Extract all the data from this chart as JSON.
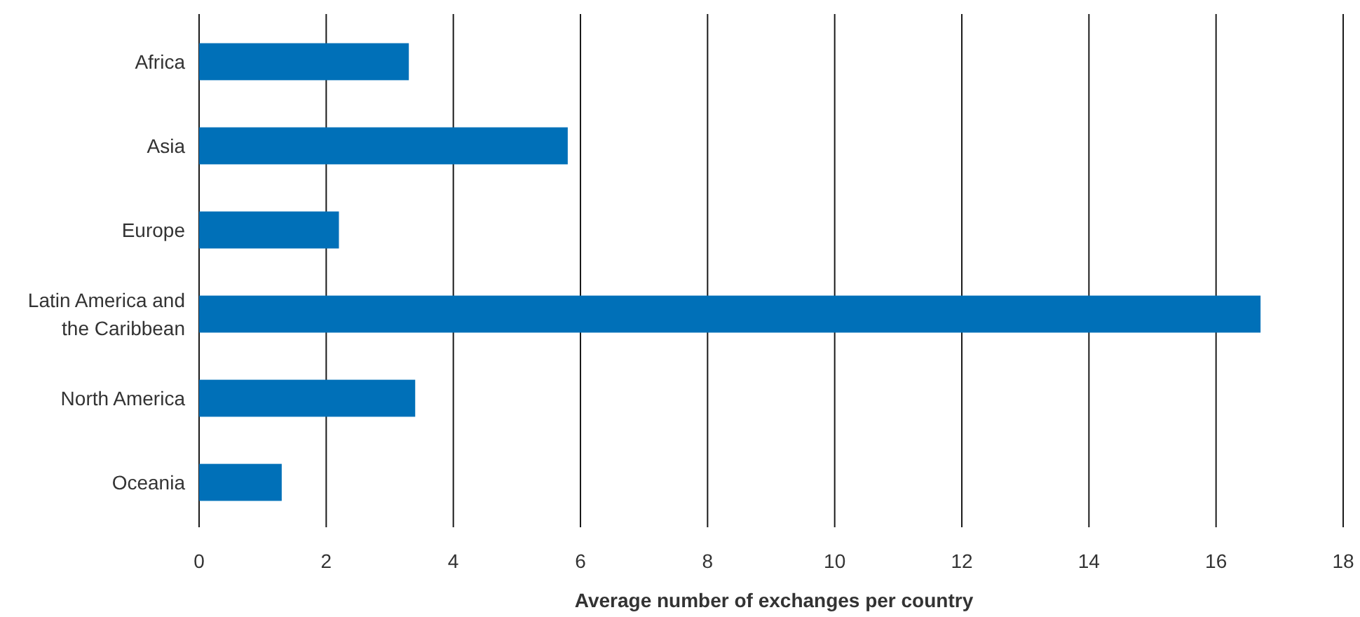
{
  "chart_data": {
    "type": "bar",
    "orientation": "horizontal",
    "xlabel": "Average number of exchanges per country",
    "categories": [
      "Africa",
      "Asia",
      "Europe",
      "Latin America and the Caribbean",
      "North America",
      "Oceania"
    ],
    "values": [
      3.3,
      5.8,
      2.2,
      16.7,
      3.4,
      1.3
    ],
    "color": "#0070b8",
    "xlim": [
      0,
      18
    ],
    "xticks": [
      0,
      2,
      4,
      6,
      8,
      10,
      12,
      14,
      16,
      18
    ],
    "grid": "x"
  }
}
